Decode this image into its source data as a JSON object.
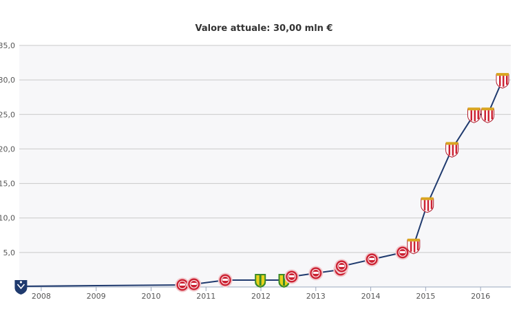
{
  "chart_data": {
    "type": "line",
    "title": "Valore attuale: 30,00 mln €",
    "xlabel": "",
    "ylabel": "",
    "xlim": [
      2007.6,
      2016.55
    ],
    "ylim": [
      0,
      35
    ],
    "y_ticks": [
      {
        "value": 5,
        "label": "5,0"
      },
      {
        "value": 10,
        "label": "10,0"
      },
      {
        "value": 15,
        "label": "15,0"
      },
      {
        "value": 20,
        "label": "20,0"
      },
      {
        "value": 25,
        "label": "25,0"
      },
      {
        "value": 30,
        "label": "30,0"
      },
      {
        "value": 35,
        "label": "35,0"
      }
    ],
    "x_ticks": [
      {
        "value": 2008,
        "label": "2008"
      },
      {
        "value": 2009,
        "label": "2009"
      },
      {
        "value": 2010,
        "label": "2010"
      },
      {
        "value": 2011,
        "label": "2011"
      },
      {
        "value": 2012,
        "label": "2012"
      },
      {
        "value": 2013,
        "label": "2013"
      },
      {
        "value": 2014,
        "label": "2014"
      },
      {
        "value": 2015,
        "label": "2015"
      },
      {
        "value": 2016,
        "label": "2016"
      }
    ],
    "grid": true,
    "legend": "none",
    "series": [
      {
        "color": "#1f3a6e",
        "points": [
          {
            "x": 2007.63,
            "y": 0.1,
            "marker": "blue-shield-crest-icon"
          },
          {
            "x": 2010.57,
            "y": 0.3,
            "marker": "red-round-crest-icon"
          },
          {
            "x": 2010.78,
            "y": 0.4,
            "marker": "red-round-crest-icon"
          },
          {
            "x": 2011.35,
            "y": 1.0,
            "marker": "red-round-crest-icon"
          },
          {
            "x": 2011.99,
            "y": 1.0,
            "marker": "yellow-green-crest-icon"
          },
          {
            "x": 2012.42,
            "y": 1.0,
            "marker": "yellow-green-crest-icon"
          },
          {
            "x": 2012.56,
            "y": 1.5,
            "marker": "red-round-crest-icon"
          },
          {
            "x": 2013.0,
            "y": 2.0,
            "marker": "red-round-crest-icon"
          },
          {
            "x": 2013.45,
            "y": 2.5,
            "marker": "red-round-crest-icon"
          },
          {
            "x": 2013.47,
            "y": 3.0,
            "marker": "red-round-crest-icon"
          },
          {
            "x": 2014.02,
            "y": 4.0,
            "marker": "red-round-crest-icon"
          },
          {
            "x": 2014.58,
            "y": 5.0,
            "marker": "red-round-crest-icon"
          },
          {
            "x": 2014.78,
            "y": 6.0,
            "marker": "red-white-shield-crest-icon"
          },
          {
            "x": 2015.03,
            "y": 12.0,
            "marker": "red-white-shield-crest-icon"
          },
          {
            "x": 2015.48,
            "y": 20.0,
            "marker": "red-white-shield-crest-icon"
          },
          {
            "x": 2015.88,
            "y": 25.0,
            "marker": "red-white-shield-crest-icon"
          },
          {
            "x": 2016.13,
            "y": 25.0,
            "marker": "red-white-shield-crest-icon"
          },
          {
            "x": 2016.4,
            "y": 30.0,
            "marker": "red-white-shield-crest-icon"
          }
        ]
      }
    ]
  },
  "colors": {
    "line": "#1f3a6e",
    "plot_background": "#f7f7f9",
    "grid": "#c9c9c9",
    "blue_crest": "#1f3a6e",
    "red_crest": "#cc2233",
    "yellow_crest": "#e8d21a",
    "green_crest": "#3a8a2a"
  }
}
